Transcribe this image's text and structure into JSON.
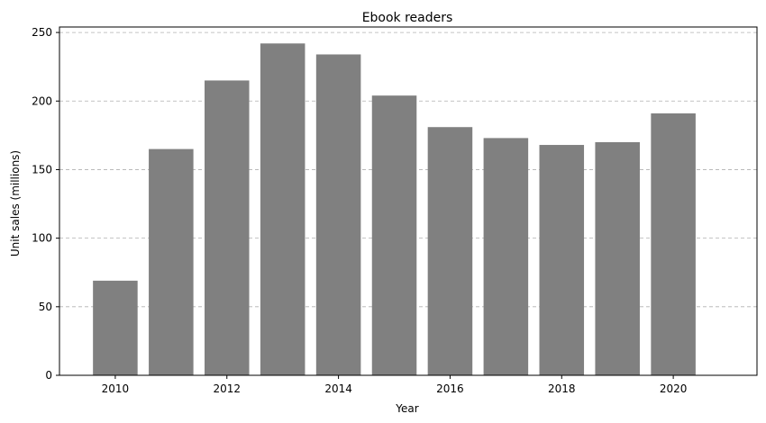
{
  "chart_data": {
    "type": "bar",
    "title": "Ebook readers",
    "xlabel": "Year",
    "ylabel": "Unit sales (millions)",
    "x": [
      2010,
      2011,
      2012,
      2013,
      2014,
      2015,
      2016,
      2017,
      2018,
      2019,
      2020
    ],
    "values": [
      69,
      165,
      215,
      242,
      234,
      204,
      181,
      173,
      168,
      170,
      191
    ],
    "xlim": [
      2009,
      2021.5
    ],
    "ylim": [
      0,
      254
    ],
    "xticks": [
      2010,
      2012,
      2014,
      2016,
      2018,
      2020
    ],
    "yticks": [
      0,
      50,
      100,
      150,
      200,
      250
    ],
    "bar_color": "#808080",
    "grid": "y-dashed",
    "legend": "none"
  }
}
